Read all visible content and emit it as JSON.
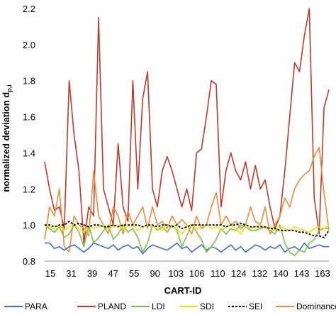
{
  "chart_data": {
    "type": "line",
    "title": "",
    "xlabel": "CART-ID",
    "ylabel": "normalized deviation d",
    "ylabel_subscript": "p,i",
    "ylim": [
      0.8,
      2.2
    ],
    "yticks": [
      "0.8",
      "1.0",
      "1.2",
      "1.4",
      "1.6",
      "1.8",
      "2.0",
      "2.2"
    ],
    "x_tick_labels": [
      "15",
      "31",
      "39",
      "47",
      "55",
      "90",
      "103",
      "106",
      "110",
      "124",
      "132",
      "140",
      "143",
      "163"
    ],
    "n_points": 59,
    "grid": false,
    "legend_position": "bottom",
    "series": [
      {
        "name": "PARA",
        "color": "#4472C4",
        "dash": "solid",
        "values": [
          0.9,
          0.9,
          0.87,
          0.88,
          0.86,
          0.88,
          0.89,
          0.87,
          0.85,
          0.87,
          0.9,
          0.89,
          0.88,
          0.87,
          0.89,
          0.86,
          0.88,
          0.89,
          0.87,
          0.88,
          0.84,
          0.87,
          0.89,
          0.88,
          0.87,
          0.86,
          0.88,
          0.9,
          0.87,
          0.88,
          0.85,
          0.87,
          0.89,
          0.86,
          0.88,
          0.87,
          0.85,
          0.87,
          0.89,
          0.86,
          0.88,
          0.85,
          0.87,
          0.89,
          0.88,
          0.86,
          0.88,
          0.87,
          0.89,
          0.85,
          0.87,
          0.88,
          0.86,
          0.9,
          0.87,
          0.88,
          0.89,
          0.88,
          0.88
        ]
      },
      {
        "name": "PLAND",
        "color": "#C0392B",
        "dash": "solid",
        "values": [
          1.35,
          1.2,
          1.08,
          1.1,
          0.98,
          1.8,
          1.5,
          1.3,
          0.9,
          1.1,
          1.05,
          2.15,
          1.2,
          1.1,
          1.0,
          1.45,
          1.1,
          1.02,
          1.8,
          1.2,
          1.7,
          1.85,
          1.2,
          1.1,
          1.3,
          1.38,
          1.3,
          1.2,
          1.1,
          1.2,
          1.08,
          1.4,
          1.42,
          1.6,
          1.8,
          1.78,
          1.1,
          1.3,
          1.4,
          1.3,
          1.25,
          1.35,
          1.2,
          1.33,
          1.2,
          1.25,
          1.1,
          0.98,
          1.05,
          1.3,
          1.6,
          1.9,
          1.85,
          2.05,
          2.2,
          1.15,
          0.95,
          1.65,
          1.75
        ]
      },
      {
        "name": "LDI",
        "color": "#7DC242",
        "dash": "solid",
        "values": [
          1.0,
          0.98,
          0.96,
          0.99,
          0.93,
          0.95,
          1.0,
          0.96,
          0.88,
          1.0,
          0.9,
          0.93,
          0.97,
          1.0,
          0.92,
          0.95,
          1.0,
          0.96,
          0.98,
          0.93,
          0.85,
          0.9,
          1.0,
          0.97,
          0.99,
          0.96,
          1.0,
          0.97,
          0.88,
          0.94,
          1.0,
          0.96,
          0.92,
          0.85,
          0.88,
          0.92,
          0.98,
          0.95,
          0.98,
          0.97,
          1.0,
          0.99,
          0.97,
          0.97,
          0.98,
          0.99,
          0.97,
          0.95,
          1.0,
          0.9,
          0.85,
          0.83,
          0.86,
          0.85,
          0.9,
          0.92,
          0.97,
          0.98,
          0.98
        ]
      },
      {
        "name": "SDI",
        "color": "#F2E600",
        "dash": "solid",
        "values": [
          1.0,
          0.99,
          0.98,
          1.0,
          0.97,
          0.99,
          1.0,
          0.98,
          0.96,
          1.0,
          0.98,
          0.99,
          1.0,
          0.98,
          0.99,
          1.0,
          0.98,
          0.99,
          1.0,
          0.97,
          0.99,
          1.0,
          0.99,
          0.98,
          0.97,
          1.0,
          0.99,
          0.98,
          0.95,
          0.99,
          1.0,
          0.98,
          0.99,
          1.0,
          0.98,
          0.99,
          0.97,
          0.99,
          1.0,
          0.98,
          0.95,
          0.99,
          0.98,
          0.99,
          1.0,
          0.98,
          0.99,
          0.97,
          0.99,
          0.98,
          0.97,
          0.99,
          0.98,
          0.97,
          0.96,
          0.98,
          0.99,
          0.98,
          1.0
        ]
      },
      {
        "name": "SEI",
        "color": "#000000",
        "dash": "dashed",
        "values": [
          1.0,
          1.0,
          0.99,
          1.0,
          1.0,
          1.02,
          1.0,
          1.01,
          1.0,
          0.99,
          1.0,
          1.0,
          0.99,
          0.99,
          1.0,
          0.99,
          1.0,
          1.0,
          1.0,
          1.0,
          0.99,
          1.0,
          1.0,
          0.99,
          1.0,
          1.0,
          0.99,
          1.0,
          0.98,
          0.99,
          1.0,
          1.0,
          1.0,
          1.0,
          1.0,
          1.0,
          1.0,
          0.99,
          1.0,
          1.0,
          1.01,
          1.0,
          0.99,
          0.99,
          0.99,
          0.99,
          0.98,
          0.98,
          0.97,
          0.97,
          0.97,
          0.97,
          0.96,
          0.96,
          0.95,
          0.94,
          0.94,
          0.93,
          0.97
        ]
      },
      {
        "name": "Dominance",
        "color": "#ED8C3A",
        "dash": "solid",
        "values": [
          0.92,
          1.1,
          1.05,
          1.2,
          0.88,
          0.85,
          1.05,
          1.0,
          0.98,
          0.94,
          1.3,
          1.05,
          1.0,
          0.95,
          1.1,
          1.05,
          0.95,
          1.08,
          1.0,
          1.05,
          1.1,
          0.98,
          1.1,
          1.0,
          1.02,
          0.98,
          1.05,
          1.0,
          1.03,
          1.0,
          0.95,
          1.05,
          0.98,
          1.0,
          1.1,
          1.18,
          1.0,
          1.05,
          1.0,
          1.02,
          0.98,
          1.0,
          1.1,
          1.02,
          1.0,
          1.1,
          0.95,
          1.0,
          1.05,
          1.15,
          1.1,
          1.2,
          1.25,
          1.28,
          1.3,
          1.38,
          1.43,
          1.18,
          0.97
        ]
      }
    ]
  }
}
